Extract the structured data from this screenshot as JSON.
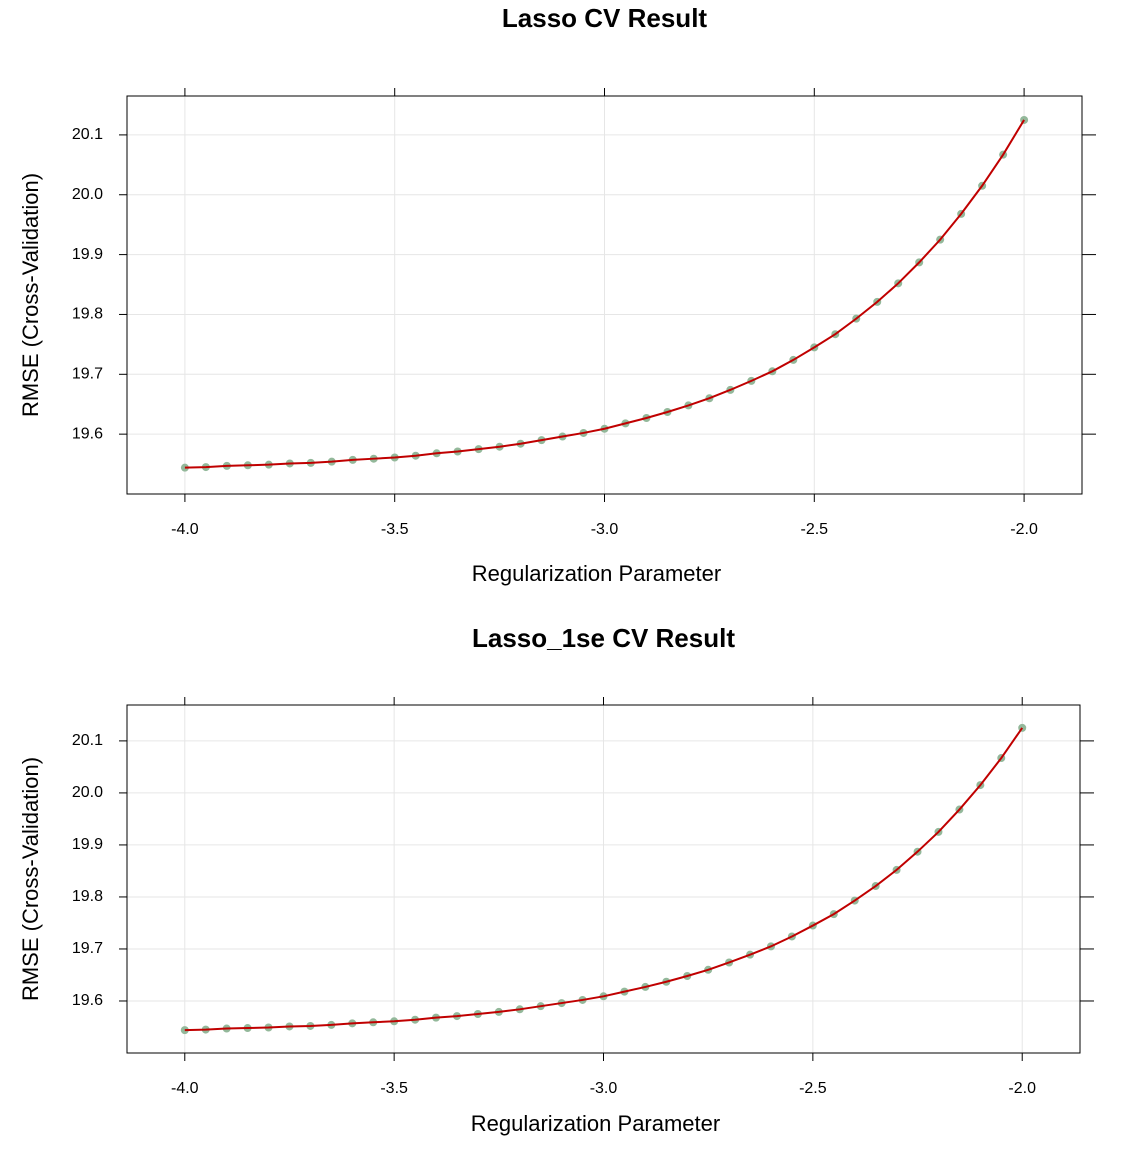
{
  "chart_data": [
    {
      "type": "line",
      "title": "Lasso CV Result",
      "xlabel": "Regularization Parameter",
      "ylabel": "RMSE (Cross-Validation)",
      "x": [
        -4.0,
        -3.95,
        -3.9,
        -3.85,
        -3.8,
        -3.75,
        -3.7,
        -3.65,
        -3.6,
        -3.55,
        -3.5,
        -3.45,
        -3.4,
        -3.35,
        -3.3,
        -3.25,
        -3.2,
        -3.15,
        -3.1,
        -3.05,
        -3.0,
        -2.95,
        -2.9,
        -2.85,
        -2.8,
        -2.75,
        -2.7,
        -2.65,
        -2.6,
        -2.55,
        -2.5,
        -2.45,
        -2.4,
        -2.35,
        -2.3,
        -2.25,
        -2.2,
        -2.15,
        -2.1,
        -2.05,
        -2.0
      ],
      "values": [
        19.544,
        19.545,
        19.547,
        19.548,
        19.549,
        19.551,
        19.552,
        19.554,
        19.557,
        19.559,
        19.561,
        19.564,
        19.568,
        19.571,
        19.575,
        19.579,
        19.584,
        19.59,
        19.596,
        19.602,
        19.609,
        19.618,
        19.627,
        19.637,
        19.648,
        19.66,
        19.674,
        19.689,
        19.705,
        19.724,
        19.745,
        19.767,
        19.793,
        19.821,
        19.852,
        19.887,
        19.925,
        19.968,
        20.015,
        20.067,
        20.125
      ],
      "color": "#c00000",
      "marker_color": "#93b89a",
      "xlim": [
        -4.138,
        -1.862
      ],
      "xticks": [
        {
          "value": -4,
          "label": "-4.0"
        },
        -3.5,
        {
          "value": -3,
          "label": "-3.0"
        },
        -2.5,
        {
          "value": -2,
          "label": "-2.0"
        }
      ],
      "ylim": [
        19.5,
        20.165
      ],
      "yticks": [
        19.6,
        19.7,
        19.8,
        19.9,
        {
          "value": 20,
          "label": "20.0"
        },
        20.1
      ],
      "grid": true
    },
    {
      "type": "line",
      "title": "Lasso_1se CV Result",
      "xlabel": "Regularization Parameter",
      "ylabel": "RMSE (Cross-Validation)",
      "x": [
        -4.0,
        -3.95,
        -3.9,
        -3.85,
        -3.8,
        -3.75,
        -3.7,
        -3.65,
        -3.6,
        -3.55,
        -3.5,
        -3.45,
        -3.4,
        -3.35,
        -3.3,
        -3.25,
        -3.2,
        -3.15,
        -3.1,
        -3.05,
        -3.0,
        -2.95,
        -2.9,
        -2.85,
        -2.8,
        -2.75,
        -2.7,
        -2.65,
        -2.6,
        -2.55,
        -2.5,
        -2.45,
        -2.4,
        -2.35,
        -2.3,
        -2.25,
        -2.2,
        -2.15,
        -2.1,
        -2.05,
        -2.0
      ],
      "values": [
        19.544,
        19.545,
        19.547,
        19.548,
        19.549,
        19.551,
        19.552,
        19.554,
        19.557,
        19.559,
        19.561,
        19.564,
        19.568,
        19.571,
        19.575,
        19.579,
        19.584,
        19.59,
        19.596,
        19.602,
        19.609,
        19.618,
        19.627,
        19.637,
        19.648,
        19.66,
        19.674,
        19.689,
        19.705,
        19.724,
        19.745,
        19.767,
        19.793,
        19.821,
        19.852,
        19.887,
        19.925,
        19.968,
        20.015,
        20.067,
        20.125
      ],
      "color": "#c00000",
      "marker_color": "#93b89a",
      "xlim": [
        -4.138,
        -1.862
      ],
      "xticks": [
        {
          "value": -4,
          "label": "-4.0"
        },
        -3.5,
        {
          "value": -3,
          "label": "-3.0"
        },
        -2.5,
        {
          "value": -2,
          "label": "-2.0"
        }
      ],
      "ylim": [
        19.5,
        20.169
      ],
      "yticks": [
        19.6,
        19.7,
        19.8,
        19.9,
        {
          "value": 20,
          "label": "20.0"
        },
        20.1
      ],
      "grid": true
    }
  ]
}
